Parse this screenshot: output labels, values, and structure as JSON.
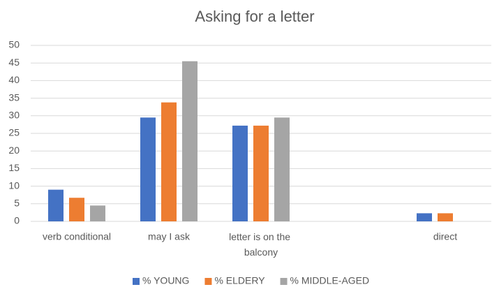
{
  "chart_data": {
    "type": "bar",
    "title": "Asking for a letter",
    "categories": [
      "verb conditional",
      "may I ask",
      "letter is on the balcony",
      null,
      "direct"
    ],
    "series": [
      {
        "name": "% YOUNG",
        "color": "#4472c4",
        "values": [
          9,
          29.5,
          27.2,
          null,
          2.3
        ]
      },
      {
        "name": "% ELDERY",
        "color": "#ed7d31",
        "values": [
          6.7,
          33.8,
          27.2,
          null,
          2.3
        ]
      },
      {
        "name": "% MIDDLE-AGED",
        "color": "#a5a5a5",
        "values": [
          4.5,
          45.5,
          29.5,
          null,
          null
        ]
      }
    ],
    "ylim": [
      0,
      50
    ],
    "yticks": [
      0,
      5,
      10,
      15,
      20,
      25,
      30,
      35,
      40,
      45,
      50
    ],
    "grid": true,
    "legend": "bottom"
  }
}
